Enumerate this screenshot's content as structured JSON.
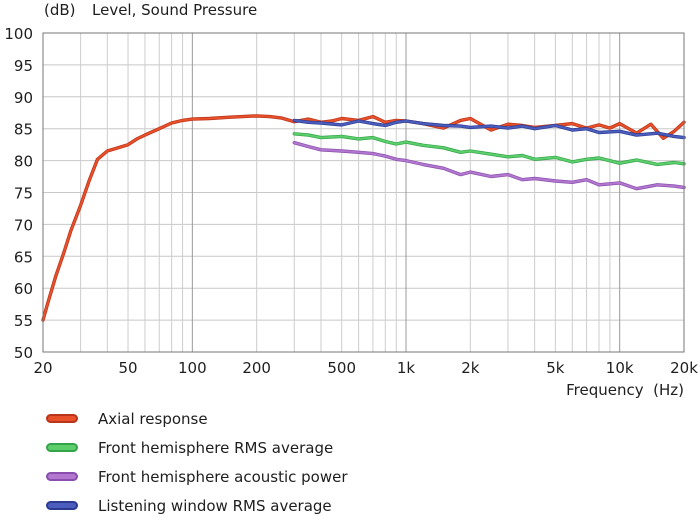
{
  "chart_data": {
    "type": "line",
    "title": "Level, Sound Pressure",
    "ylabel": "(dB)",
    "xlabel": "Frequency  (Hz)",
    "x_scale": "log",
    "xlim": [
      20,
      20000
    ],
    "ylim": [
      50,
      100
    ],
    "grid": true,
    "legend_position": "bottom",
    "y_ticks": [
      "50",
      "55",
      "60",
      "65",
      "70",
      "75",
      "80",
      "85",
      "90",
      "95",
      "100"
    ],
    "x_ticks": [
      {
        "value": 20,
        "label": "20"
      },
      {
        "value": 50,
        "label": "50"
      },
      {
        "value": 100,
        "label": "100"
      },
      {
        "value": 200,
        "label": "200"
      },
      {
        "value": 500,
        "label": "500"
      },
      {
        "value": 1000,
        "label": "1k"
      },
      {
        "value": 2000,
        "label": "2k"
      },
      {
        "value": 5000,
        "label": "5k"
      },
      {
        "value": 10000,
        "label": "10k"
      },
      {
        "value": 20000,
        "label": "20k"
      }
    ],
    "series": [
      {
        "name": "Axial response",
        "color": "#e8502a",
        "edge": "#b8341a",
        "x": [
          20,
          21,
          23,
          25,
          27,
          30,
          33,
          36,
          40,
          45,
          50,
          55,
          60,
          70,
          80,
          90,
          100,
          120,
          150,
          200,
          230,
          260,
          300,
          350,
          400,
          450,
          500,
          600,
          700,
          800,
          900,
          1000,
          1200,
          1500,
          1800,
          2000,
          2500,
          3000,
          3500,
          4000,
          5000,
          6000,
          7000,
          8000,
          9000,
          10000,
          12000,
          14000,
          16000,
          18000,
          20000
        ],
        "y": [
          55,
          57.5,
          62,
          65.5,
          69,
          73,
          77,
          80.2,
          81.5,
          82,
          82.5,
          83.4,
          84,
          85,
          85.9,
          86.3,
          86.5,
          86.6,
          86.8,
          87,
          86.9,
          86.7,
          86.1,
          86.5,
          86,
          86.2,
          86.6,
          86.3,
          86.9,
          86,
          86.3,
          86.2,
          85.8,
          85.1,
          86.3,
          86.6,
          84.8,
          85.7,
          85.5,
          85.2,
          85.5,
          85.8,
          85.1,
          85.6,
          85.1,
          85.8,
          84.3,
          85.7,
          83.5,
          84.6,
          86
        ]
      },
      {
        "name": "Front hemisphere RMS average",
        "color": "#5ccf6c",
        "edge": "#34a44a",
        "x": [
          300,
          350,
          400,
          500,
          600,
          700,
          800,
          900,
          1000,
          1200,
          1500,
          1800,
          2000,
          2500,
          3000,
          3500,
          4000,
          5000,
          6000,
          7000,
          8000,
          10000,
          12000,
          15000,
          18000,
          20000
        ],
        "y": [
          84.2,
          84,
          83.6,
          83.8,
          83.4,
          83.6,
          83,
          82.6,
          82.9,
          82.4,
          82,
          81.3,
          81.5,
          81,
          80.6,
          80.8,
          80.2,
          80.5,
          79.8,
          80.2,
          80.4,
          79.6,
          80.1,
          79.4,
          79.7,
          79.5
        ]
      },
      {
        "name": "Front hemisphere acoustic power",
        "color": "#b277cf",
        "edge": "#8a4fae",
        "x": [
          300,
          350,
          400,
          500,
          600,
          700,
          800,
          900,
          1000,
          1200,
          1500,
          1800,
          2000,
          2500,
          3000,
          3500,
          4000,
          5000,
          6000,
          7000,
          8000,
          10000,
          12000,
          15000,
          18000,
          20000
        ],
        "y": [
          82.8,
          82.2,
          81.7,
          81.5,
          81.3,
          81.1,
          80.7,
          80.2,
          80,
          79.4,
          78.8,
          77.8,
          78.2,
          77.5,
          77.8,
          77,
          77.2,
          76.8,
          76.6,
          77,
          76.2,
          76.5,
          75.6,
          76.2,
          76,
          75.8
        ]
      },
      {
        "name": "Listening window RMS average",
        "color": "#4b5dbd",
        "edge": "#2c3b92",
        "x": [
          300,
          350,
          400,
          500,
          600,
          700,
          800,
          900,
          1000,
          1200,
          1500,
          1800,
          2000,
          2500,
          3000,
          3500,
          4000,
          5000,
          6000,
          7000,
          8000,
          10000,
          12000,
          15000,
          18000,
          20000
        ],
        "y": [
          86.3,
          86,
          85.9,
          85.6,
          86.2,
          85.8,
          85.5,
          86,
          86.2,
          85.8,
          85.5,
          85.4,
          85.2,
          85.4,
          85.1,
          85.4,
          85,
          85.5,
          84.8,
          85,
          84.4,
          84.6,
          84,
          84.3,
          83.8,
          83.6
        ]
      }
    ]
  }
}
